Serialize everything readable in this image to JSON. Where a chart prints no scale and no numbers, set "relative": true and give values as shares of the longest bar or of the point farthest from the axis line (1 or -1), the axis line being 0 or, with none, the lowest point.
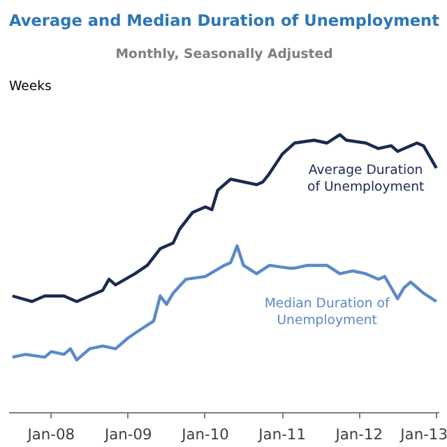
{
  "chart_data": {
    "type": "line",
    "title": "Average and Median Duration of Unemployment",
    "subtitle": "Monthly, Seasonally Adjusted",
    "ylabel": "Weeks",
    "relative": true,
    "x": [
      "2007-07",
      "2007-10",
      "2007-12",
      "2008-03",
      "2008-05",
      "2008-07",
      "2008-09",
      "2008-10",
      "2008-11",
      "2009-02",
      "2009-04",
      "2009-06",
      "2009-08",
      "2009-09",
      "2009-11",
      "2010-01",
      "2010-02",
      "2010-03",
      "2010-05",
      "2010-09",
      "2010-10",
      "2010-11",
      "2011-01",
      "2011-03",
      "2011-06",
      "2011-08",
      "2011-10",
      "2011-11",
      "2012-02",
      "2012-04",
      "2012-06",
      "2012-07",
      "2012-10",
      "2012-11",
      "2013-01"
    ],
    "xlim": [
      "2007-06-15",
      "2013-01-15"
    ],
    "xticks": [
      {
        "value": "2008-01",
        "label": "Jan-08"
      },
      {
        "value": "2009-01",
        "label": "Jan-09"
      },
      {
        "value": "2010-01",
        "label": "Jan-10"
      },
      {
        "value": "2011-01",
        "label": "Jan-11"
      },
      {
        "value": "2012-01",
        "label": "Jan-12"
      },
      {
        "value": "2013-01",
        "label": "Jan-13"
      }
    ],
    "series": [
      {
        "name": "Average Duration of Unemployment",
        "color": "#1a2a50",
        "values": [
          0.42,
          0.4,
          0.42,
          0.42,
          0.4,
          0.42,
          0.44,
          0.48,
          0.46,
          0.5,
          0.53,
          0.59,
          0.61,
          0.66,
          0.72,
          0.74,
          0.73,
          0.8,
          0.84,
          0.82,
          0.83,
          0.86,
          0.93,
          0.97,
          0.98,
          0.97,
          1.0,
          0.98,
          0.97,
          0.95,
          0.96,
          0.94,
          0.97,
          0.96,
          0.88
        ]
      },
      {
        "name": "Median Duration of Unemployment",
        "color": "#5a8ac8",
        "x": [
          "2007-07",
          "2007-09",
          "2007-12",
          "2008-01",
          "2008-03",
          "2008-04",
          "2008-05",
          "2008-07",
          "2008-09",
          "2008-11",
          "2009-01",
          "2009-03",
          "2009-05",
          "2009-06",
          "2009-07",
          "2009-08",
          "2009-10",
          "2010-01",
          "2010-04",
          "2010-05",
          "2010-06",
          "2010-07",
          "2010-09",
          "2010-11",
          "2011-02",
          "2011-03",
          "2011-05",
          "2011-08",
          "2011-10",
          "2011-12",
          "2012-02",
          "2012-04",
          "2012-05",
          "2012-07",
          "2012-08",
          "2012-09",
          "2012-11",
          "2013-01"
        ],
        "values": [
          0.2,
          0.21,
          0.2,
          0.22,
          0.21,
          0.23,
          0.19,
          0.23,
          0.24,
          0.23,
          0.27,
          0.3,
          0.33,
          0.42,
          0.39,
          0.43,
          0.48,
          0.49,
          0.53,
          0.54,
          0.6,
          0.53,
          0.5,
          0.53,
          0.52,
          0.52,
          0.53,
          0.53,
          0.5,
          0.51,
          0.5,
          0.48,
          0.49,
          0.41,
          0.45,
          0.47,
          0.43,
          0.4
        ]
      }
    ],
    "grid": false,
    "marker": "none",
    "line_style": "solid"
  }
}
